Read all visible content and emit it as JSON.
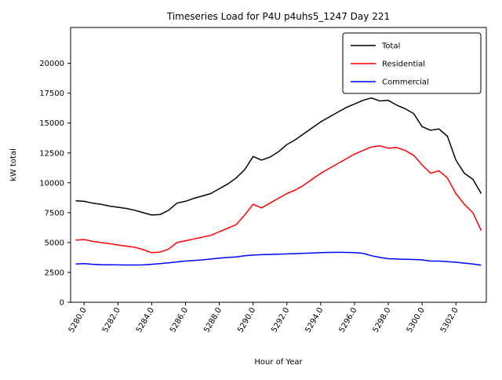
{
  "chart_data": {
    "type": "line",
    "title": "Timeseries Load for P4U p4uhs5_1247  Day 221",
    "xlabel": "Hour of Year",
    "ylabel": "kW total",
    "xlim": [
      5279.2,
      5303.8
    ],
    "ylim": [
      0,
      23000
    ],
    "xticks": [
      5280,
      5282,
      5284,
      5286,
      5288,
      5290,
      5292,
      5294,
      5296,
      5298,
      5300,
      5302
    ],
    "xtick_labels": [
      "5280.0",
      "5282.0",
      "5284.0",
      "5286.0",
      "5288.0",
      "5290.0",
      "5292.0",
      "5294.0",
      "5296.0",
      "5298.0",
      "5300.0",
      "5302.0"
    ],
    "yticks": [
      0,
      2500,
      5000,
      7500,
      10000,
      12500,
      15000,
      17500,
      20000
    ],
    "grid": false,
    "legend_position": "upper right",
    "x": [
      5279.5,
      5280.0,
      5280.5,
      5281.0,
      5281.5,
      5282.0,
      5282.5,
      5283.0,
      5283.5,
      5284.0,
      5284.5,
      5285.0,
      5285.5,
      5286.0,
      5286.5,
      5287.0,
      5287.5,
      5288.0,
      5288.5,
      5289.0,
      5289.5,
      5290.0,
      5290.5,
      5291.0,
      5291.5,
      5292.0,
      5292.5,
      5293.0,
      5293.5,
      5294.0,
      5294.5,
      5295.0,
      5295.5,
      5296.0,
      5296.5,
      5297.0,
      5297.5,
      5298.0,
      5298.5,
      5299.0,
      5299.5,
      5300.0,
      5300.5,
      5301.0,
      5301.5,
      5302.0,
      5302.5,
      5303.0,
      5303.5
    ],
    "series": [
      {
        "name": "Total",
        "color": "#000000",
        "values": [
          8500,
          8450,
          8300,
          8200,
          8050,
          7950,
          7850,
          7700,
          7500,
          7300,
          7350,
          7700,
          8300,
          8450,
          8700,
          8900,
          9100,
          9500,
          9900,
          10400,
          11100,
          12200,
          11900,
          12150,
          12600,
          13200,
          13600,
          14100,
          14600,
          15100,
          15500,
          15900,
          16300,
          16600,
          16900,
          17100,
          16850,
          16900,
          16500,
          16200,
          15800,
          14700,
          14400,
          14500,
          13900,
          11900,
          10800,
          10300,
          9100
        ]
      },
      {
        "name": "Residential",
        "color": "#ff0000",
        "values": [
          5200,
          5250,
          5100,
          5000,
          4900,
          4800,
          4700,
          4600,
          4400,
          4150,
          4200,
          4450,
          5000,
          5150,
          5300,
          5450,
          5600,
          5900,
          6200,
          6500,
          7300,
          8200,
          7900,
          8300,
          8700,
          9100,
          9400,
          9800,
          10300,
          10800,
          11200,
          11600,
          12000,
          12400,
          12700,
          13000,
          13100,
          12900,
          12950,
          12700,
          12300,
          11500,
          10800,
          11000,
          10400,
          9100,
          8200,
          7500,
          6000
        ]
      },
      {
        "name": "Commercial",
        "color": "#0000ff",
        "values": [
          3200,
          3230,
          3180,
          3150,
          3140,
          3130,
          3120,
          3120,
          3130,
          3180,
          3230,
          3300,
          3380,
          3450,
          3500,
          3550,
          3620,
          3700,
          3750,
          3800,
          3900,
          3950,
          3980,
          4000,
          4030,
          4050,
          4070,
          4100,
          4120,
          4150,
          4170,
          4180,
          4170,
          4150,
          4100,
          3900,
          3750,
          3650,
          3620,
          3600,
          3580,
          3550,
          3450,
          3450,
          3400,
          3350,
          3280,
          3200,
          3100
        ]
      }
    ]
  }
}
